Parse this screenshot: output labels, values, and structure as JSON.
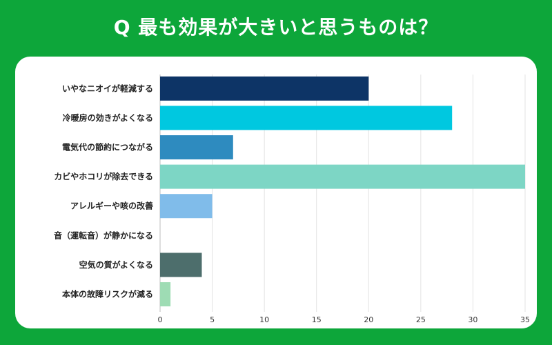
{
  "page": {
    "background": "#0da63a"
  },
  "chart_data": {
    "type": "bar",
    "orientation": "horizontal",
    "title": "Q 最も効果が大きいと思うものは？",
    "categories": [
      "いやなニオイが軽減する",
      "冷暖房の効きがよくなる",
      "電気代の節約につながる",
      "カビやホコリが除去できる",
      "アレルギーや咳の改善",
      "音（運転音）が静かになる",
      "空気の質がよくなる",
      "本体の故障リスクが減る"
    ],
    "values": [
      20,
      28,
      7,
      35,
      5,
      0,
      4,
      1
    ],
    "colors": [
      "#0d3466",
      "#00c8e0",
      "#2e8bbf",
      "#7dd6c5",
      "#80bcea",
      "#cccccc",
      "#4d6e6c",
      "#9edcb4"
    ],
    "xticks": [
      0,
      5,
      10,
      15,
      20,
      25,
      30,
      35
    ],
    "xlim": [
      0,
      35
    ],
    "xlabel": "",
    "ylabel": "",
    "grid": true
  }
}
